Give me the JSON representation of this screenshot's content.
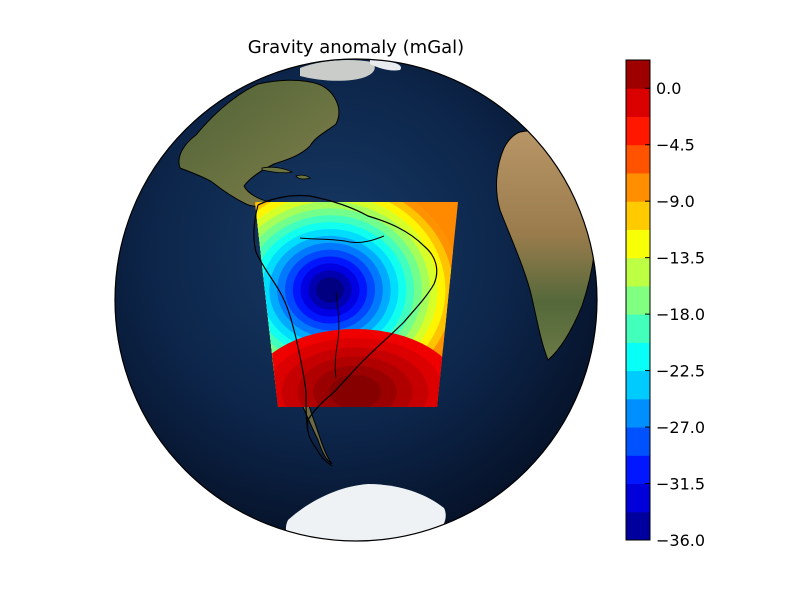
{
  "map": {
    "title": "Gravity anomaly (mGal)",
    "projection": "orthographic",
    "ocean_color": "#0b1e3d",
    "land_color": "#5b6e3a",
    "desert_color": "#a98a5a",
    "ice_color": "#f2f4f6",
    "coastline_color": "#000000"
  },
  "colorbar": {
    "colormap": "jet",
    "range": [
      -36.0,
      2.25
    ],
    "levels": 17,
    "ticks": [
      "0.0",
      "−4.5",
      "−9.0",
      "−13.5",
      "−18.0",
      "−22.5",
      "−27.0",
      "−31.5",
      "−36.0"
    ],
    "tick_values": [
      0.0,
      -4.5,
      -9.0,
      -13.5,
      -18.0,
      -22.5,
      -27.0,
      -31.5,
      -36.0
    ]
  },
  "anomaly_field": {
    "minimum_value": -36.0,
    "maximum_value": 2.25,
    "low_region": "central South America",
    "high_region": "southern Brazil / Uruguay"
  }
}
